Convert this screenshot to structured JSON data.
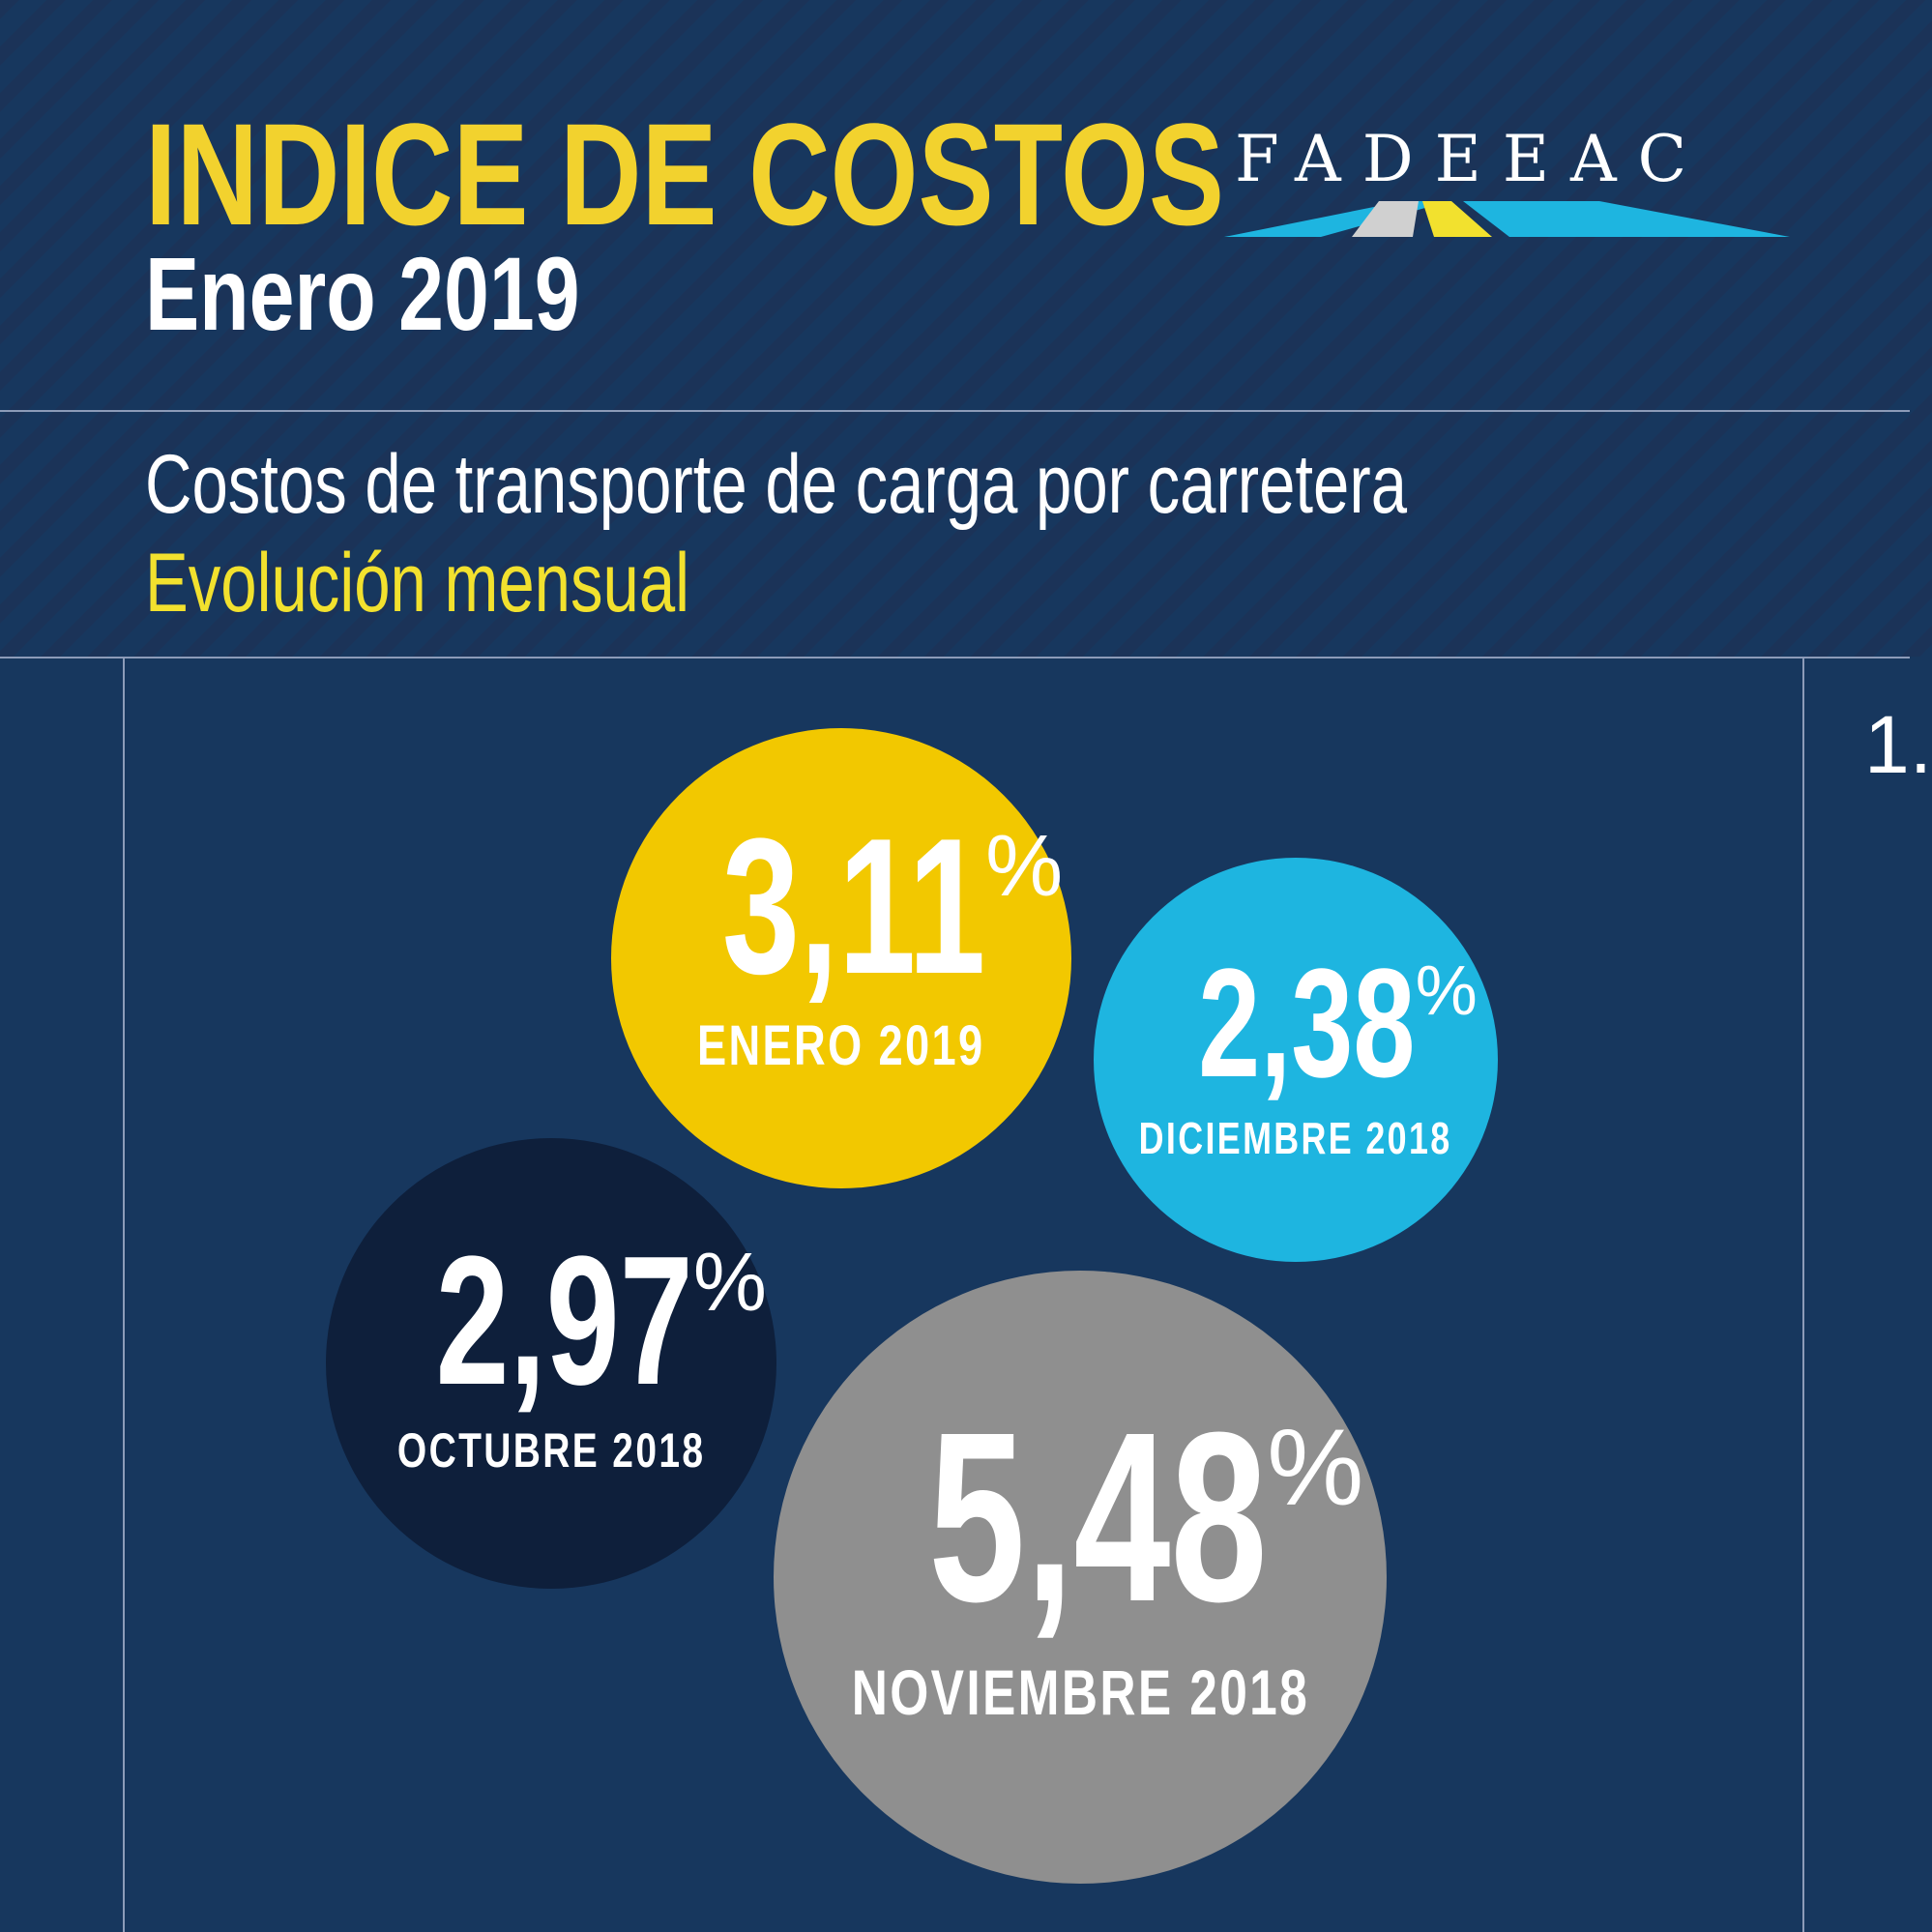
{
  "header": {
    "title": "INDICE DE COSTOS",
    "period": "Enero 2019",
    "subtitle": "Costos de transporte de carga por carretera",
    "subtitle2": "Evolución mensual",
    "logo_text": "FADEEAC",
    "page_marker": "1."
  },
  "colors": {
    "background": "#17375e",
    "title": "#f2d22e",
    "enero": "#f2c800",
    "diciembre": "#1eb5e0",
    "octubre": "#0e1f3b",
    "noviembre": "#8f8f8f"
  },
  "bubbles": [
    {
      "value": "3,11",
      "unit": "%",
      "label": "ENERO 2019"
    },
    {
      "value": "2,38",
      "unit": "%",
      "label": "DICIEMBRE 2018"
    },
    {
      "value": "2,97",
      "unit": "%",
      "label": "OCTUBRE 2018"
    },
    {
      "value": "5,48",
      "unit": "%",
      "label": "NOVIEMBRE 2018"
    }
  ]
}
